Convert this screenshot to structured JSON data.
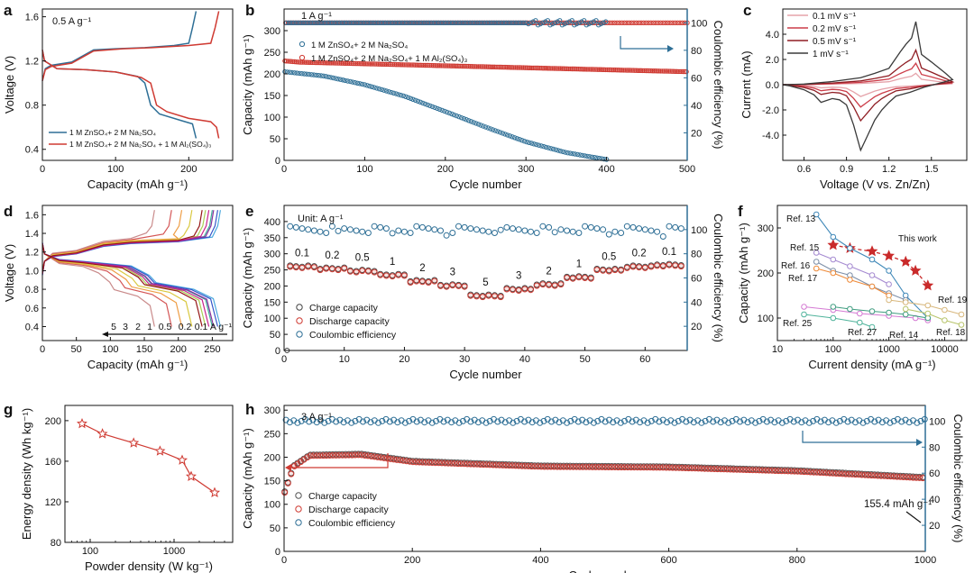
{
  "colors": {
    "blue": "#2e6f96",
    "red": "#cf3a32",
    "ink": "#111111",
    "cv": [
      "#e5a3aa",
      "#cc3d49",
      "#8f1d23",
      "#3a3a3a"
    ],
    "rate": [
      "#c98a8a",
      "#d45555",
      "#ee9d45",
      "#d9c840",
      "#a9cf55",
      "#3cae9a",
      "#49a8de",
      "#3556c9",
      "#8a2f9e",
      "#c8238d",
      "#951515"
    ],
    "refs": {
      "this_work": "#c92a2a",
      "ref13": "#3f88b8",
      "ref15": "#a58ad1",
      "ref16": "#7d8fa8",
      "ref17": "#ee8b3a",
      "ref25": "#d47ad3",
      "ref27": "#4fb39b",
      "ref14": "#3f9d80",
      "ref18": "#b8c46b",
      "ref19": "#d8b87d"
    }
  },
  "chart_data": [
    {
      "panel": "a",
      "type": "line",
      "annotation": "0.5 A g⁻¹",
      "xlabel": "Capacity (mAh g⁻¹)",
      "ylabel": "Voltage (V)",
      "xlim": [
        0,
        260
      ],
      "ylim": [
        0.3,
        1.67
      ],
      "xticks": [
        0,
        100,
        200
      ],
      "yticks": [
        0.4,
        0.8,
        1.2,
        1.6
      ],
      "series": [
        {
          "name": "1 M ZnSO₄ + 2 M Na₂SO₄",
          "color": "#2e6f96",
          "charge": {
            "x": [
              0,
              4,
              12,
              40,
              70,
              100,
              140,
              180,
              200,
              205,
              210
            ],
            "y": [
              1.02,
              1.13,
              1.16,
              1.19,
              1.3,
              1.31,
              1.32,
              1.34,
              1.36,
              1.5,
              1.65
            ]
          },
          "discharge": {
            "x": [
              0,
              3,
              20,
              60,
              100,
              130,
              140,
              148,
              160,
              190,
              205,
              210
            ],
            "y": [
              1.3,
              1.2,
              1.13,
              1.12,
              1.1,
              1.06,
              1.0,
              0.8,
              0.72,
              0.66,
              0.63,
              0.5
            ]
          }
        },
        {
          "name": "1 M ZnSO₄ + 2 M Na₂SO₄ + 1 M Al₂(SO₄)₃",
          "color": "#cf3a32",
          "charge": {
            "x": [
              0,
              4,
              12,
              40,
              70,
              110,
              150,
              200,
              230,
              236,
              241
            ],
            "y": [
              1.02,
              1.12,
              1.15,
              1.18,
              1.29,
              1.31,
              1.32,
              1.34,
              1.36,
              1.5,
              1.65
            ]
          },
          "discharge": {
            "x": [
              0,
              3,
              20,
              60,
              100,
              135,
              148,
              156,
              170,
              200,
              230,
              238,
              241
            ],
            "y": [
              1.3,
              1.2,
              1.13,
              1.12,
              1.1,
              1.05,
              1.0,
              0.8,
              0.74,
              0.68,
              0.65,
              0.6,
              0.5
            ]
          }
        }
      ],
      "legend": [
        "1 M ZnSO₄+ 2 M Na₂SO₄",
        "1 M ZnSO₄+ 2 M Na₂SO₄ + 1 M Al₂(SO₄)₃"
      ]
    },
    {
      "panel": "b",
      "type": "scatter",
      "annotation": "1 A g⁻¹",
      "xlabel": "Cycle number",
      "ylabel": "Capacity (mAh g⁻¹)",
      "y2label": "Coulombic efficiency (%)",
      "xlim": [
        0,
        500
      ],
      "ylim": [
        0,
        350
      ],
      "y2lim": [
        0,
        110
      ],
      "xticks": [
        0,
        100,
        200,
        300,
        400,
        500
      ],
      "yticks": [
        0,
        50,
        100,
        150,
        200,
        250,
        300
      ],
      "y2ticks": [
        20,
        40,
        60,
        80,
        100
      ],
      "series": [
        {
          "name": "1 M ZnSO₄ + 2 M Na₂SO₄",
          "color": "#2e6f96",
          "capacity_range": [
            1,
            400
          ],
          "capacity_keypoints": {
            "x": [
              1,
              50,
              100,
              150,
              200,
              250,
              300,
              350,
              400
            ],
            "y": [
              205,
              195,
              175,
              148,
              113,
              77,
              43,
              18,
              2
            ]
          },
          "ce_percent": 100
        },
        {
          "name": "1 M ZnSO₄ + 2 M Na₂SO₄ + 1 M Al₂(SO₄)₃",
          "color": "#cf3a32",
          "capacity_range": [
            1,
            500
          ],
          "capacity_keypoints": {
            "x": [
              1,
              20,
              500
            ],
            "y": [
              230,
              227,
              205
            ]
          },
          "ce_percent": 100
        }
      ],
      "legend": [
        "1 M ZnSO₄+ 2 M Na₂SO₄",
        "1 M ZnSO₄+ 2 M Na₂SO₄+ 1 M Al₂(SO₄)₃"
      ]
    },
    {
      "panel": "c",
      "type": "line",
      "xlabel": "Voltage (V vs. Zn/Zn)",
      "ylabel": "Current (mA)",
      "xlim": [
        0.45,
        1.75
      ],
      "ylim": [
        -6.0,
        6.0
      ],
      "xticks": [
        0.6,
        0.9,
        1.2,
        1.5
      ],
      "yticks": [
        -4.0,
        -2.0,
        0.0,
        2.0,
        4.0
      ],
      "series": [
        {
          "name": "0.1 mV s⁻¹",
          "scale": 0.18
        },
        {
          "name": "0.2 mV s⁻¹",
          "scale": 0.34
        },
        {
          "name": "0.5 mV s⁻¹",
          "scale": 0.55
        },
        {
          "name": "1 mV s⁻¹",
          "scale": 1.0
        }
      ],
      "cv_template": {
        "upper": {
          "x": [
            0.45,
            0.6,
            0.8,
            1.0,
            1.1,
            1.2,
            1.28,
            1.32,
            1.36,
            1.39,
            1.43,
            1.5,
            1.6,
            1.65
          ],
          "y": [
            0.0,
            0.05,
            0.25,
            0.55,
            0.9,
            1.3,
            2.6,
            3.2,
            3.7,
            5.0,
            2.4,
            1.8,
            0.9,
            0.4
          ]
        },
        "lower": {
          "x": [
            1.65,
            1.55,
            1.45,
            1.35,
            1.25,
            1.2,
            1.15,
            1.1,
            1.05,
            1.0,
            0.95,
            0.9,
            0.85,
            0.8,
            0.72,
            0.67,
            0.6,
            0.5,
            0.45
          ],
          "y": [
            0.4,
            0.1,
            -0.2,
            -0.6,
            -0.9,
            -1.4,
            -2.0,
            -2.8,
            -4.0,
            -5.2,
            -3.2,
            -1.6,
            -1.2,
            -1.1,
            -1.4,
            -0.8,
            -0.4,
            -0.1,
            0.0
          ]
        }
      },
      "legend": [
        "0.1 mV s⁻¹",
        "0.2 mV s⁻¹",
        "0.5 mV s⁻¹",
        "1 mV s⁻¹"
      ]
    },
    {
      "panel": "d",
      "type": "line",
      "xlabel": "Capacity (mAh g⁻¹)",
      "ylabel": "Voltage (V)",
      "xlim": [
        0,
        280
      ],
      "ylim": [
        0.25,
        1.7
      ],
      "xticks": [
        0,
        50,
        100,
        150,
        200,
        250
      ],
      "yticks": [
        0.4,
        0.6,
        0.8,
        1.0,
        1.2,
        1.4,
        1.6
      ],
      "rates_A_per_g": [
        5,
        3,
        2,
        1,
        0.5,
        0.2,
        0.1
      ],
      "capacities": [
        165,
        190,
        205,
        220,
        240,
        250,
        262,
        258,
        252,
        245,
        235
      ],
      "rate_labels": [
        "5",
        "3",
        "2",
        "1",
        "0.5",
        "0.2",
        "0.1",
        "A g⁻¹"
      ]
    },
    {
      "panel": "e",
      "type": "scatter",
      "annotation": "Unit: A g⁻¹",
      "xlabel": "Cycle number",
      "ylabel": "Capacity (mAh g⁻¹)",
      "y2label": "Coulombic efficiency (%)",
      "xlim": [
        0,
        67
      ],
      "ylim": [
        0,
        450
      ],
      "y2lim": [
        0,
        120
      ],
      "xticks": [
        0,
        10,
        20,
        30,
        40,
        50,
        60
      ],
      "yticks": [
        0,
        50,
        100,
        150,
        200,
        250,
        300,
        350,
        400
      ],
      "y2ticks": [
        20,
        40,
        60,
        80,
        100
      ],
      "steps": [
        {
          "rate": "0.1",
          "cycles": [
            1,
            5
          ],
          "capacity": 258
        },
        {
          "rate": "0.2",
          "cycles": [
            6,
            10
          ],
          "capacity": 252
        },
        {
          "rate": "0.5",
          "cycles": [
            11,
            15
          ],
          "capacity": 245
        },
        {
          "rate": "1",
          "cycles": [
            16,
            20
          ],
          "capacity": 232
        },
        {
          "rate": "2",
          "cycles": [
            21,
            25
          ],
          "capacity": 213
        },
        {
          "rate": "3",
          "cycles": [
            26,
            30
          ],
          "capacity": 200
        },
        {
          "rate": "5",
          "cycles": [
            31,
            36
          ],
          "capacity": 168
        },
        {
          "rate": "3",
          "cycles": [
            37,
            41
          ],
          "capacity": 188
        },
        {
          "rate": "2",
          "cycles": [
            42,
            46
          ],
          "capacity": 203
        },
        {
          "rate": "1",
          "cycles": [
            47,
            51
          ],
          "capacity": 225
        },
        {
          "rate": "0.5",
          "cycles": [
            52,
            56
          ],
          "capacity": 248
        },
        {
          "rate": "0.2",
          "cycles": [
            57,
            61
          ],
          "capacity": 258
        },
        {
          "rate": "0.1",
          "cycles": [
            62,
            66
          ],
          "capacity": 263
        }
      ],
      "ce_percent": 100,
      "legend": [
        "Charge capacity",
        "Discharge capacity",
        "Coulombic efficiency"
      ]
    },
    {
      "panel": "f",
      "type": "line",
      "xlabel": "Current density (mA g⁻¹)",
      "ylabel": "Capacity (mAh g⁻¹)",
      "xscale": "log",
      "xlim": [
        10,
        25000
      ],
      "ylim": [
        50,
        350
      ],
      "xticks": [
        10,
        100,
        1000,
        10000
      ],
      "yticks": [
        100,
        200,
        300
      ],
      "series": [
        {
          "name": "This work",
          "marker": "star",
          "x": [
            100,
            200,
            500,
            1000,
            2000,
            3000,
            5000
          ],
          "y": [
            262,
            255,
            248,
            238,
            225,
            205,
            172
          ]
        },
        {
          "name": "Ref. 13",
          "x": [
            50,
            100,
            200,
            500,
            1000,
            2000,
            5000
          ],
          "y": [
            330,
            280,
            255,
            230,
            205,
            150,
            100
          ]
        },
        {
          "name": "Ref. 15",
          "x": [
            50,
            100,
            200,
            500,
            1000
          ],
          "y": [
            245,
            230,
            215,
            195,
            175
          ]
        },
        {
          "name": "Ref. 16",
          "x": [
            50,
            100,
            200,
            500,
            1000,
            2000
          ],
          "y": [
            225,
            205,
            195,
            170,
            155,
            140
          ]
        },
        {
          "name": "Ref. 17",
          "x": [
            50,
            100,
            200,
            500,
            1000
          ],
          "y": [
            210,
            200,
            185,
            170,
            150
          ]
        },
        {
          "name": "Ref. 25",
          "x": [
            30,
            100,
            300,
            1000,
            3000,
            5000
          ],
          "y": [
            125,
            118,
            110,
            105,
            100,
            95
          ]
        },
        {
          "name": "Ref. 27",
          "x": [
            30,
            100,
            300,
            500
          ],
          "y": [
            108,
            100,
            90,
            80
          ]
        },
        {
          "name": "Ref. 14",
          "x": [
            100,
            200,
            500,
            1000,
            2000,
            5000
          ],
          "y": [
            125,
            120,
            115,
            112,
            108,
            100
          ]
        },
        {
          "name": "Ref. 18",
          "x": [
            2000,
            5000,
            10000,
            20000
          ],
          "y": [
            120,
            110,
            95,
            85
          ]
        },
        {
          "name": "Ref. 19",
          "x": [
            1000,
            2000,
            5000,
            10000,
            20000
          ],
          "y": [
            140,
            135,
            128,
            118,
            108
          ]
        }
      ]
    },
    {
      "panel": "g",
      "type": "line",
      "xlabel": "Powder density (W kg⁻¹)",
      "ylabel": "Energy density (Wh kg⁻¹)",
      "xscale": "log",
      "xlim": [
        50,
        5000
      ],
      "ylim": [
        80,
        215
      ],
      "xticks": [
        100,
        1000
      ],
      "yticks": [
        80,
        120,
        160,
        200
      ],
      "x": [
        80,
        140,
        330,
        680,
        1250,
        1600,
        3050
      ],
      "y": [
        197,
        187,
        178,
        170,
        161,
        145,
        129
      ]
    },
    {
      "panel": "h",
      "type": "scatter",
      "annotation": "3 A g⁻¹",
      "final_label": "155.4 mAh g⁻¹",
      "xlabel": "Cycle number",
      "ylabel": "Capacity (mAh g⁻¹)",
      "y2label": "Coulombic efficiency (%)",
      "xlim": [
        0,
        1000
      ],
      "ylim": [
        0,
        310
      ],
      "y2lim": [
        0,
        112
      ],
      "xticks": [
        0,
        200,
        400,
        600,
        800,
        1000
      ],
      "yticks": [
        0,
        50,
        100,
        150,
        200,
        250,
        300
      ],
      "y2ticks": [
        20,
        40,
        60,
        80,
        100
      ],
      "capacity_keypoints": {
        "x": [
          1,
          15,
          40,
          120,
          200,
          400,
          600,
          800,
          1000
        ],
        "y": [
          125,
          180,
          203,
          205,
          190,
          180,
          178,
          170,
          155.4
        ]
      },
      "ce_percent": 100,
      "legend": [
        "Charge capacity",
        "Discharge capacity",
        "Coulombic efficiency"
      ]
    }
  ]
}
